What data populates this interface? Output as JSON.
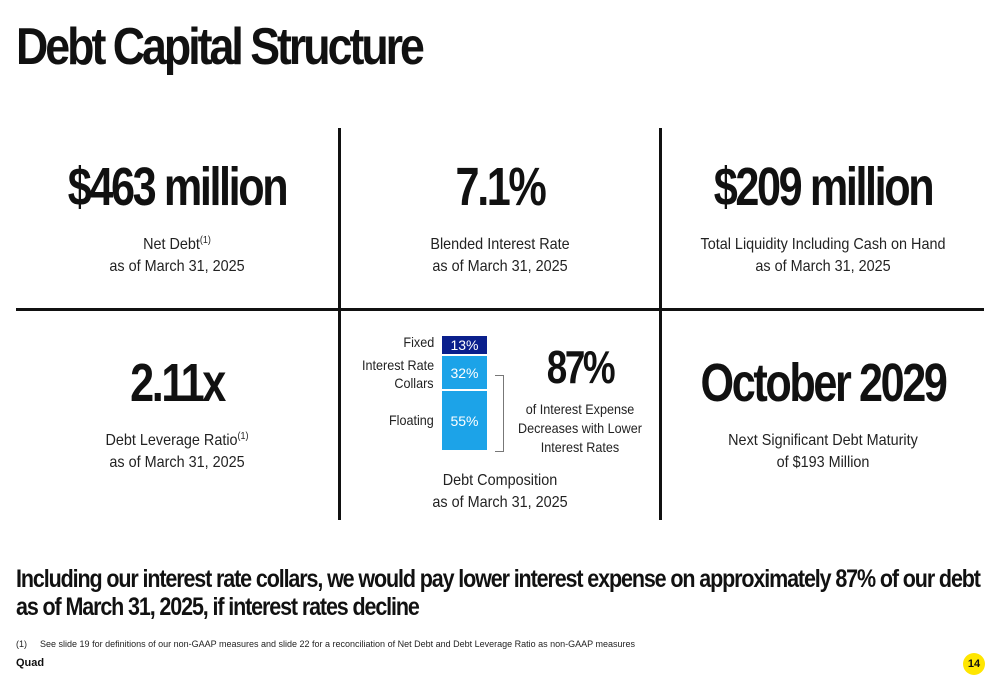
{
  "slide": {
    "title": "Debt Capital Structure",
    "brand": "Quad",
    "page_number": "14"
  },
  "colors": {
    "fixed": "#0A1F8C",
    "collars": "#1CA3E8",
    "floating": "#1CA3E8",
    "page_badge": "#FFE600"
  },
  "metrics": {
    "net_debt": {
      "value": "$463 million",
      "label": "Net Debt",
      "sup": "(1)",
      "date": "as of March 31, 2025"
    },
    "interest_rate": {
      "value": "7.1%",
      "label": "Blended Interest Rate",
      "date": "as of March 31, 2025"
    },
    "liquidity": {
      "value": "$209 million",
      "label": "Total Liquidity Including Cash on Hand",
      "date": "as of March 31, 2025"
    },
    "leverage": {
      "value": "2.11x",
      "label": "Debt Leverage Ratio",
      "sup": "(1)",
      "date": "as of March 31, 2025"
    },
    "maturity": {
      "value": "October 2029",
      "label": "Next Significant Debt Maturity",
      "date": "of $193 Million"
    }
  },
  "composition": {
    "segments": [
      {
        "name": "Fixed",
        "value": 13,
        "label": "13%"
      },
      {
        "name_line1": "Interest Rate",
        "name_line2": "Collars",
        "value": 32,
        "label": "32%"
      },
      {
        "name": "Floating",
        "value": 55,
        "label": "55%"
      }
    ],
    "highlight": {
      "value": "87%",
      "line1": "of Interest Expense",
      "line2": "Decreases with Lower",
      "line3": "Interest Rates"
    },
    "caption": "Debt Composition",
    "date": "as of March 31, 2025"
  },
  "summary": {
    "line1": "Including our interest rate collars, we would pay lower interest expense on approximately 87% of our debt",
    "line2": "as of March 31, 2025, if interest rates decline"
  },
  "footnote": {
    "marker": "(1)",
    "text": "See slide 19 for definitions of our non-GAAP measures and slide 22 for a reconciliation of Net Debt and Debt Leverage Ratio as non-GAAP measures"
  }
}
